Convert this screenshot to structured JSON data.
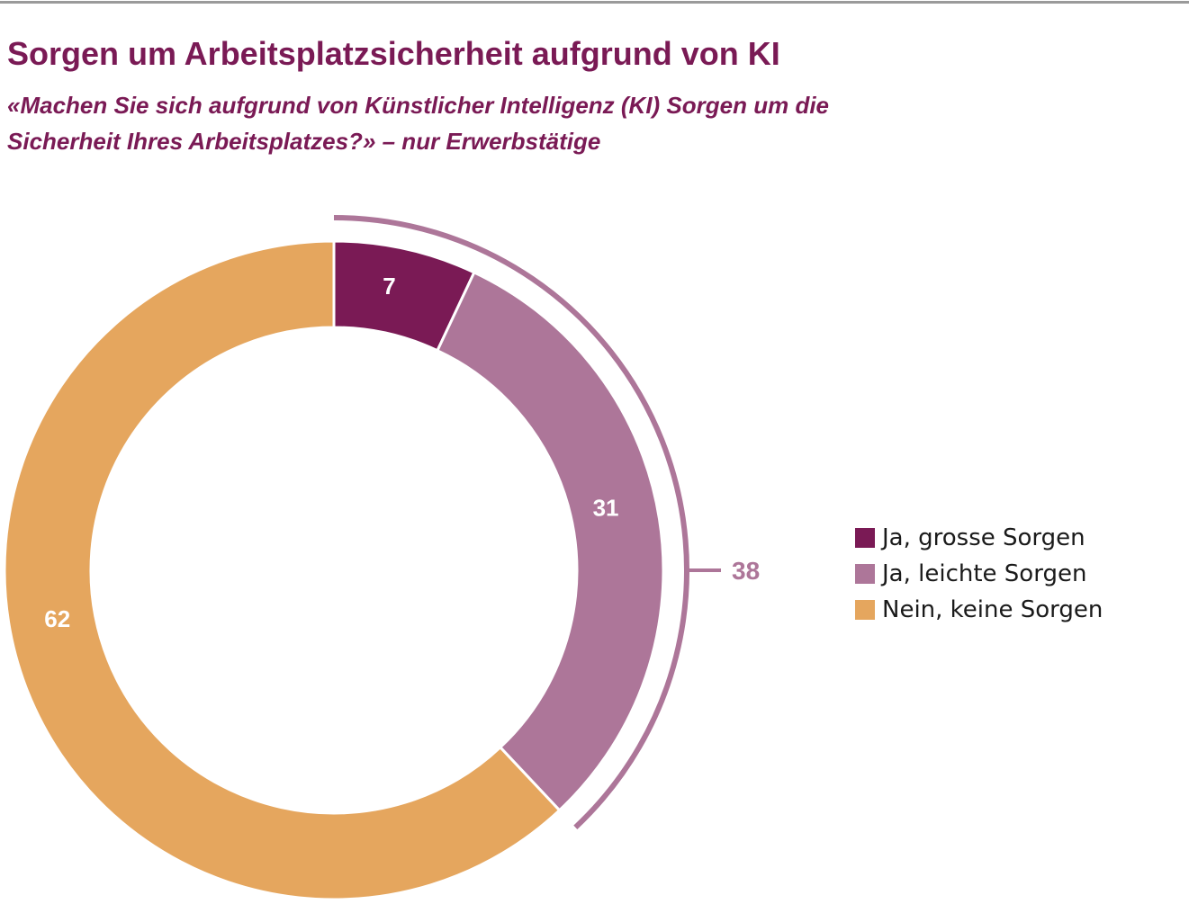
{
  "colors": {
    "title": "#7a1a55",
    "rule": "#9a9a9a",
    "label_on_slice": "#ffffff",
    "bracket": "#ad7699"
  },
  "header": {
    "title": "Sorgen um Arbeitsplatzsicherheit aufgrund von KI",
    "subtitle": "«Machen Sie sich aufgrund von Künstlicher Intelligenz (KI) Sorgen um die Sicherheit Ihres Arbeitsplatzes?» – nur Erwerbstätige"
  },
  "chart_data": {
    "type": "pie",
    "variant": "donut",
    "title": "Sorgen um Arbeitsplatzsicherheit aufgrund von KI",
    "subtitle": "«Machen Sie sich aufgrund von Künstlicher Intelligenz (KI) Sorgen um die Sicherheit Ihres Arbeitsplatzes?» – nur Erwerbstätige",
    "categories": [
      "Ja, grosse Sorgen",
      "Ja, leichte Sorgen",
      "Nein, keine Sorgen"
    ],
    "values": [
      7,
      31,
      62
    ],
    "labels": [
      "7",
      "31",
      "62"
    ],
    "colors": [
      "#7a1a55",
      "#ad7699",
      "#e5a65e"
    ],
    "unit": "",
    "start": "12 o'clock, clockwise",
    "legend_position": "right",
    "group_bracket": {
      "label": "38",
      "value": 38,
      "covers": [
        "Ja, grosse Sorgen",
        "Ja, leichte Sorgen"
      ]
    }
  }
}
